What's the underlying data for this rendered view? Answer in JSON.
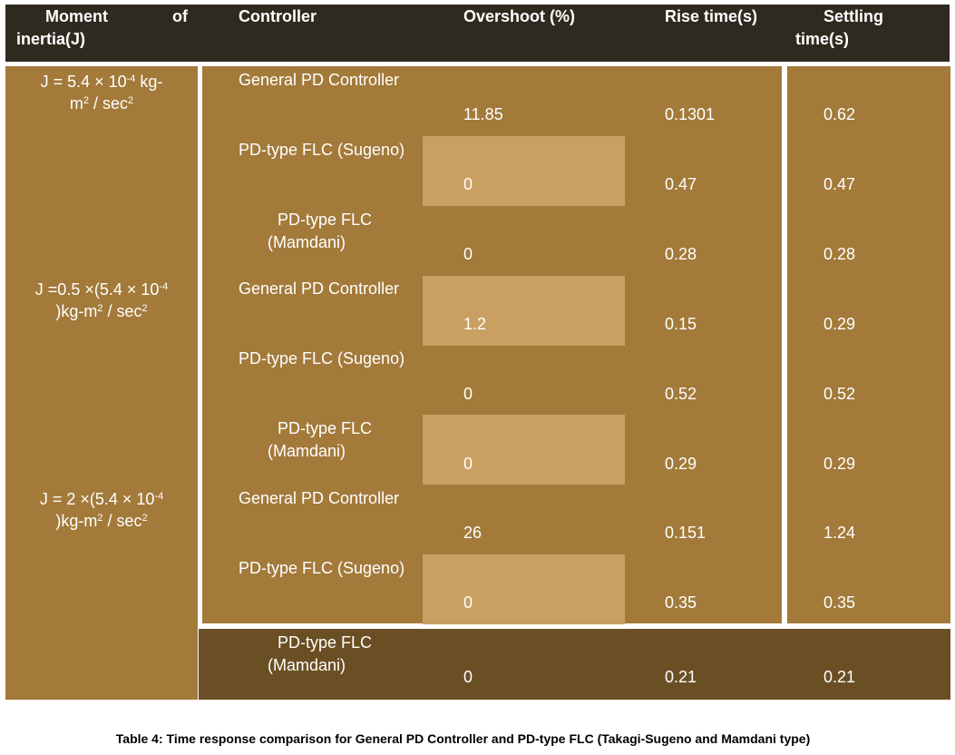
{
  "header": {
    "col1_line1_a": "Moment",
    "col1_line1_b": "of",
    "col1_line2": "inertia(J)",
    "controller": "Controller",
    "overshoot": "Overshoot (%)",
    "rise_time": "Rise time(s)",
    "settling_line1": "Settling",
    "settling_line2": "time(s)"
  },
  "groups": [
    {
      "j_a": "J = 5.4 × 10",
      "j_exp1": "-4",
      "j_b": " kg-",
      "j_c": "m",
      "j_exp2": "2",
      "j_d": " / sec",
      "j_exp3": "2"
    },
    {
      "j_a": "J =0.5 ×(5.4 × 10",
      "j_exp1": "-4",
      "j_c": ")kg-m",
      "j_exp2": "2",
      "j_d": " / sec",
      "j_exp3": "2"
    },
    {
      "j_a": "J = 2 ×(5.4 × 10",
      "j_exp1": "-4",
      "j_c": ")kg-m",
      "j_exp2": "2",
      "j_d": " / sec",
      "j_exp3": "2"
    }
  ],
  "rows": [
    {
      "controller": "General PD Controller",
      "overshoot": "11.85",
      "rise": "0.1301",
      "settling": "0.62"
    },
    {
      "controller": "PD-type FLC (Sugeno)",
      "overshoot": "0",
      "rise": "0.47",
      "settling": "0.47"
    },
    {
      "controller_l1": "PD-type FLC",
      "controller_l2": "(Mamdani)",
      "overshoot": "0",
      "rise": "0.28",
      "settling": "0.28"
    },
    {
      "controller": "General PD Controller",
      "overshoot": "1.2",
      "rise": "0.15",
      "settling": "0.29"
    },
    {
      "controller": "PD-type FLC (Sugeno)",
      "overshoot": "0",
      "rise": "0.52",
      "settling": "0.52"
    },
    {
      "controller_l1": "PD-type FLC",
      "controller_l2": "(Mamdani)",
      "overshoot": "0",
      "rise": "0.29",
      "settling": "0.29"
    },
    {
      "controller": "General PD Controller",
      "overshoot": "26",
      "rise": "0.151",
      "settling": "1.24"
    },
    {
      "controller": "PD-type FLC (Sugeno)",
      "overshoot": "0",
      "rise": "0.35",
      "settling": "0.35"
    },
    {
      "controller_l1": "PD-type FLC",
      "controller_l2": "(Mamdani)",
      "overshoot": "0",
      "rise": "0.21",
      "settling": "0.21"
    }
  ],
  "caption": "Table 4: Time response comparison for General PD Controller and PD-type FLC (Takagi-Sugeno and Mamdani type)",
  "colors": {
    "header": "#2f2a20",
    "cell": "#a37a3a",
    "highlight": "#c9a062",
    "last_row": "#6b4f24"
  }
}
